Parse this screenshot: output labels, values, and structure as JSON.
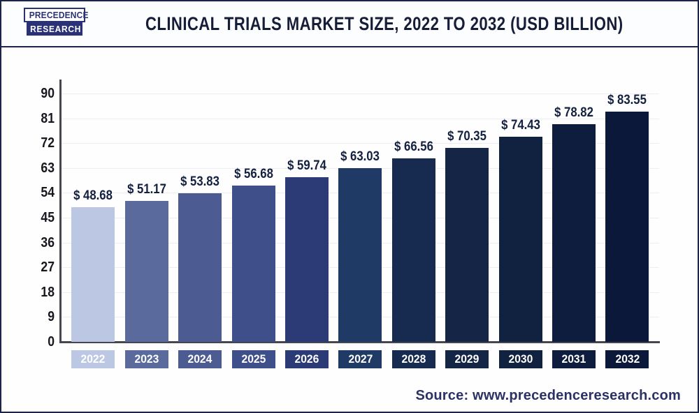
{
  "header": {
    "logo": {
      "line1": "PRECEDENCE",
      "line2": "RESEARCH"
    },
    "title": "CLINICAL TRIALS MARKET SIZE, 2022 TO 2032 (USD BILLION)"
  },
  "footer": {
    "source": "Source: www.precedenceresearch.com"
  },
  "chart_data": {
    "type": "bar",
    "title": "Clinical Trials Market Size, 2022 to 2032 (USD Billion)",
    "categories": [
      "2022",
      "2023",
      "2024",
      "2025",
      "2026",
      "2027",
      "2028",
      "2029",
      "2030",
      "2031",
      "2032"
    ],
    "values": [
      48.68,
      51.17,
      53.83,
      56.68,
      59.74,
      63.03,
      66.56,
      70.35,
      74.43,
      78.82,
      83.55
    ],
    "value_prefix": "$ ",
    "bar_colors": [
      "#bcc7e4",
      "#5a6a9d",
      "#4c5c93",
      "#3e4f8a",
      "#2c3a76",
      "#1f3a64",
      "#172a50",
      "#142546",
      "#112140",
      "#0e1c3d",
      "#0c1839"
    ],
    "xlabel": "",
    "ylabel": "",
    "ylim": [
      0,
      90
    ],
    "yticks": [
      0,
      9,
      18,
      27,
      36,
      45,
      54,
      63,
      72,
      81,
      90
    ],
    "grid": true,
    "legend": false,
    "colors": {
      "frame": "#1c2449",
      "axis": "#45464f",
      "gridline": "#ededf3",
      "tick_text": "#17171f",
      "value_text": "#13203f",
      "year_text": "#ffffff",
      "title_text": "#161d38",
      "source_text": "#2b3263",
      "logo_navy": "#2b3176",
      "background": "#ffffff"
    }
  }
}
